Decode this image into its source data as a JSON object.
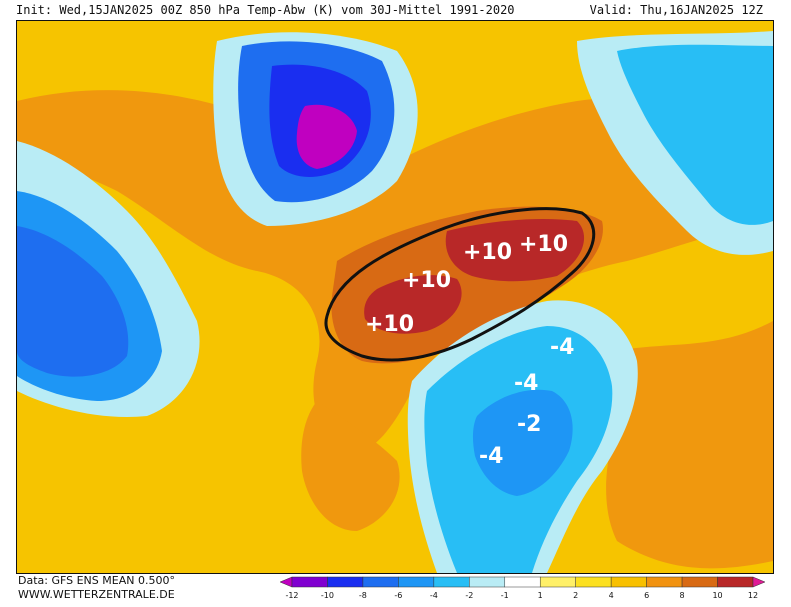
{
  "header": {
    "init": "Init: Wed,15JAN2025 00Z",
    "title": "850 hPa Temp-Abw (K) vom 30J-Mittel 1991-2020",
    "valid": "Valid: Thu,16JAN2025 12Z"
  },
  "footer": {
    "data_source": "Data: GFS ENS MEAN 0.500°",
    "website": "WWW.WETTERZENTRALE.DE"
  },
  "colorbar": {
    "ticks": [
      "-12",
      "-10",
      "-8",
      "-6",
      "-4",
      "-2",
      "-1",
      "1",
      "2",
      "4",
      "6",
      "8",
      "10",
      "12"
    ],
    "colors": [
      "#c000c0",
      "#8000d0",
      "#1a2ef0",
      "#1e6ef0",
      "#1e96f5",
      "#28bef5",
      "#b9ecf5",
      "#ffffff",
      "#fff068",
      "#fce020",
      "#f8c000",
      "#f19210",
      "#d86a14",
      "#b82828",
      "#e01a96"
    ]
  },
  "map": {
    "labels": {
      "plus10_a": "+10",
      "plus10_b": "+10",
      "plus10_c": "+10",
      "plus10_d": "+10",
      "minus4_a": "-4",
      "minus4_b": "-4",
      "minus2": "-2",
      "minus4_c": "-4"
    }
  }
}
